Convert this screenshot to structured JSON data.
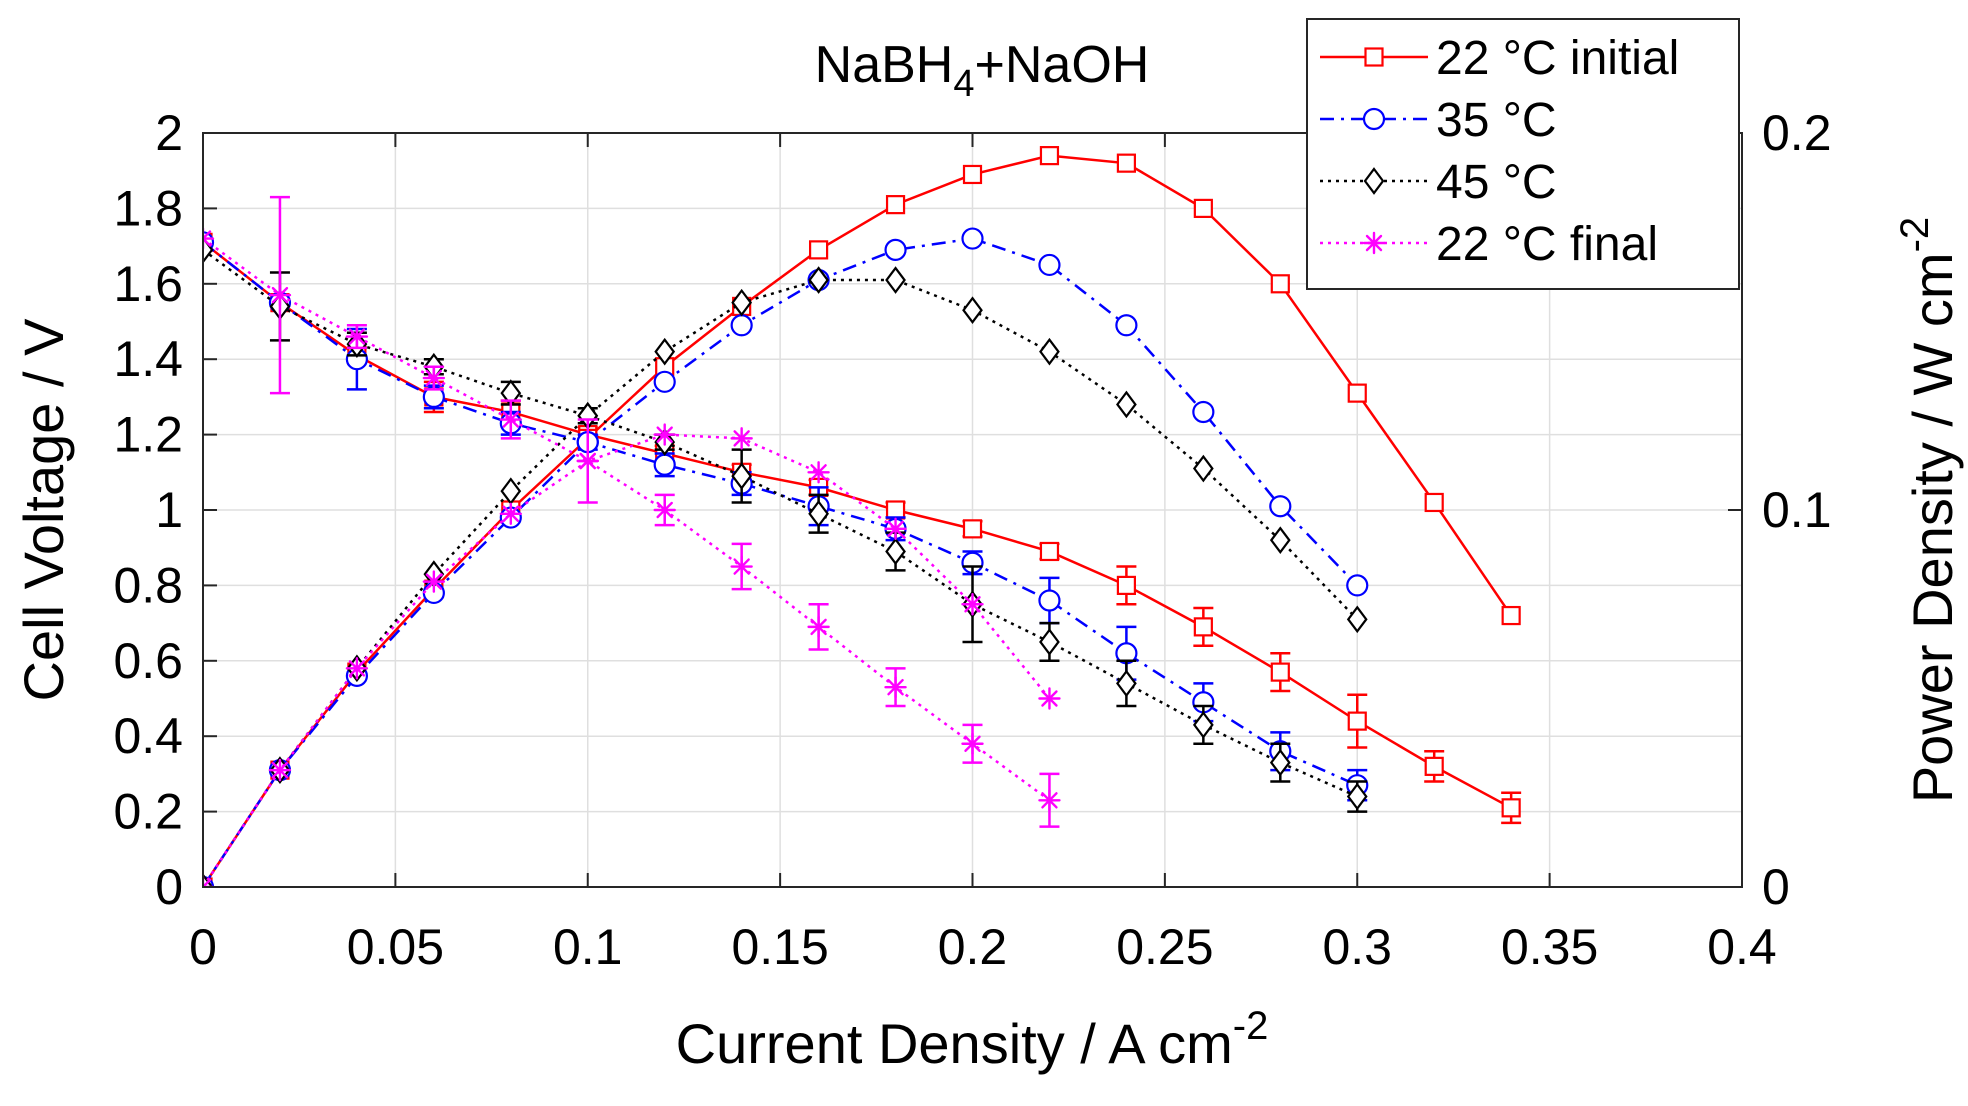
{
  "chart_data": {
    "type": "line",
    "title": {
      "main": "NaBH",
      "subscript": "4",
      "rest": "+NaOH"
    },
    "xlabel": {
      "main": "Current Density / A cm",
      "sup": "-2"
    },
    "ylabel": "Cell Voltage / V",
    "y2label": {
      "main": "Power Density / W cm",
      "sup": "-2"
    },
    "xlim": [
      0,
      0.4
    ],
    "ylim": [
      0,
      2
    ],
    "y2lim": [
      0,
      0.2
    ],
    "grid": true,
    "legend_position": "top-right",
    "xticks": [
      0,
      0.05,
      0.1,
      0.15,
      0.2,
      0.25,
      0.3,
      0.35,
      0.4
    ],
    "xtick_labels": [
      "0",
      "0.05",
      "0.1",
      "0.15",
      "0.2",
      "0.25",
      "0.3",
      "0.35",
      "0.4"
    ],
    "yticks": [
      0,
      0.2,
      0.4,
      0.6,
      0.8,
      1,
      1.2,
      1.4,
      1.6,
      1.8,
      2
    ],
    "ytick_labels": [
      "0",
      "0.2",
      "0.4",
      "0.6",
      "0.8",
      "1",
      "1.2",
      "1.4",
      "1.6",
      "1.8",
      "2"
    ],
    "y2ticks": [
      0,
      0.1,
      0.2
    ],
    "y2tick_labels": [
      "0",
      "0.1",
      "0.2"
    ],
    "series": [
      {
        "name": "22 °C initial",
        "color": "#ff0000",
        "marker": "square",
        "dash": "solid",
        "voltage": {
          "x": [
            0,
            0.02,
            0.04,
            0.06,
            0.08,
            0.1,
            0.12,
            0.14,
            0.16,
            0.18,
            0.2,
            0.22,
            0.24,
            0.26,
            0.28,
            0.3,
            0.32,
            0.34
          ],
          "y": [
            1.71,
            1.55,
            1.41,
            1.3,
            1.26,
            1.2,
            1.15,
            1.1,
            1.06,
            1.0,
            0.95,
            0.89,
            0.8,
            0.69,
            0.57,
            0.44,
            0.32,
            0.21
          ],
          "err": [
            0,
            0,
            0.02,
            0.04,
            0.03,
            0.02,
            0.02,
            0.02,
            0.02,
            0.02,
            0.02,
            0.02,
            0.05,
            0.05,
            0.05,
            0.07,
            0.04,
            0.04
          ]
        },
        "power": {
          "x": [
            0,
            0.02,
            0.04,
            0.06,
            0.08,
            0.1,
            0.12,
            0.14,
            0.16,
            0.18,
            0.2,
            0.22,
            0.24,
            0.26,
            0.28,
            0.3,
            0.32,
            0.34
          ],
          "y": [
            0,
            0.031,
            0.057,
            0.079,
            0.1,
            0.119,
            0.138,
            0.154,
            0.169,
            0.181,
            0.189,
            0.194,
            0.192,
            0.18,
            0.16,
            0.131,
            0.102,
            0.072
          ]
        }
      },
      {
        "name": "35 °C",
        "color": "#0000ff",
        "marker": "circle",
        "dash": "dashdot",
        "voltage": {
          "x": [
            0,
            0.02,
            0.04,
            0.06,
            0.08,
            0.1,
            0.12,
            0.14,
            0.16,
            0.18,
            0.2,
            0.22,
            0.24,
            0.26,
            0.28,
            0.3
          ],
          "y": [
            1.71,
            1.55,
            1.4,
            1.3,
            1.23,
            1.18,
            1.12,
            1.07,
            1.01,
            0.95,
            0.86,
            0.76,
            0.62,
            0.49,
            0.36,
            0.27
          ],
          "err": [
            0,
            0,
            0.08,
            0.03,
            0.03,
            0.02,
            0.03,
            0.03,
            0.05,
            0.03,
            0.03,
            0.06,
            0.07,
            0.05,
            0.05,
            0.04
          ]
        },
        "power": {
          "x": [
            0,
            0.02,
            0.04,
            0.06,
            0.08,
            0.1,
            0.12,
            0.14,
            0.16,
            0.18,
            0.2,
            0.22,
            0.24,
            0.26,
            0.28,
            0.3
          ],
          "y": [
            0,
            0.031,
            0.056,
            0.078,
            0.098,
            0.118,
            0.134,
            0.149,
            0.161,
            0.169,
            0.172,
            0.165,
            0.149,
            0.126,
            0.101,
            0.08
          ]
        }
      },
      {
        "name": "45 °C",
        "color": "#000000",
        "marker": "diamond",
        "dash": "dotted",
        "voltage": {
          "x": [
            0,
            0.02,
            0.04,
            0.06,
            0.08,
            0.1,
            0.12,
            0.14,
            0.16,
            0.18,
            0.2,
            0.22,
            0.24,
            0.26,
            0.28,
            0.3
          ],
          "y": [
            1.69,
            1.54,
            1.44,
            1.38,
            1.31,
            1.25,
            1.18,
            1.09,
            0.99,
            0.89,
            0.75,
            0.65,
            0.54,
            0.43,
            0.33,
            0.24
          ],
          "err": [
            0,
            0.09,
            0.03,
            0.02,
            0.03,
            0.02,
            0.02,
            0.07,
            0.05,
            0.05,
            0.1,
            0.05,
            0.06,
            0.05,
            0.05,
            0.04
          ]
        },
        "power": {
          "x": [
            0,
            0.02,
            0.04,
            0.06,
            0.08,
            0.1,
            0.12,
            0.14,
            0.16,
            0.18,
            0.2,
            0.22,
            0.24,
            0.26,
            0.28,
            0.3
          ],
          "y": [
            0,
            0.031,
            0.058,
            0.083,
            0.105,
            0.125,
            0.142,
            0.155,
            0.161,
            0.161,
            0.153,
            0.142,
            0.128,
            0.111,
            0.092,
            0.071
          ]
        }
      },
      {
        "name": "22 °C final",
        "color": "#ff00ff",
        "marker": "asterisk",
        "dash": "dotted",
        "voltage": {
          "x": [
            0,
            0.02,
            0.04,
            0.06,
            0.08,
            0.1,
            0.12,
            0.14,
            0.16,
            0.18,
            0.2,
            0.22
          ],
          "y": [
            1.72,
            1.57,
            1.46,
            1.35,
            1.24,
            1.13,
            1.0,
            0.85,
            0.69,
            0.53,
            0.38,
            0.23
          ],
          "err": [
            0,
            0.26,
            0.03,
            0.03,
            0.05,
            0.11,
            0.04,
            0.06,
            0.06,
            0.05,
            0.05,
            0.07
          ]
        },
        "power": {
          "x": [
            0,
            0.02,
            0.04,
            0.06,
            0.08,
            0.1,
            0.12,
            0.14,
            0.16,
            0.18,
            0.2,
            0.22
          ],
          "y": [
            0,
            0.031,
            0.058,
            0.081,
            0.099,
            0.113,
            0.12,
            0.119,
            0.11,
            0.095,
            0.075,
            0.05
          ]
        }
      }
    ]
  }
}
